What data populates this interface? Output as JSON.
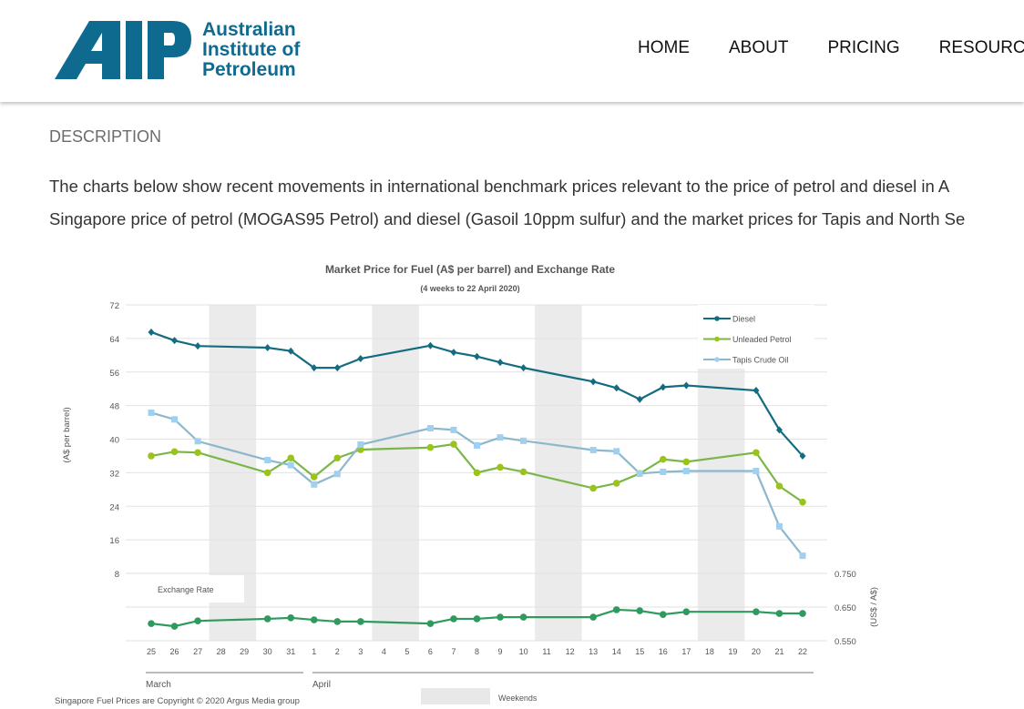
{
  "header": {
    "logo_mark": "AIP",
    "logo_lines": [
      "Australian",
      "Institute of",
      "Petroleum"
    ],
    "nav": [
      "HOME",
      "ABOUT",
      "PRICING",
      "RESOURCES"
    ]
  },
  "description": {
    "heading": "DESCRIPTION",
    "lines": [
      "The charts below show recent movements in international benchmark prices relevant to the price of petrol and diesel in A",
      "Singapore price of petrol (MOGAS95 Petrol) and diesel (Gasoil 10ppm sulfur) and the market prices for Tapis and North Se"
    ]
  },
  "chart_data": {
    "type": "line",
    "title": "Market Price for Fuel (A$ per barrel) and Exchange  Rate",
    "subtitle": "(4 weeks to 22 April 2020)",
    "ylabel": "(A$ per barrel)",
    "y2label": "(US$ / A$)",
    "ylim": [
      0,
      72
    ],
    "yticks": [
      8,
      16,
      24,
      32,
      40,
      48,
      56,
      64,
      72
    ],
    "y2lim": [
      0.55,
      0.75
    ],
    "y2ticks": [
      "0.550",
      "0.650",
      "0.750"
    ],
    "categories": [
      "25",
      "26",
      "27",
      "28",
      "29",
      "30",
      "31",
      "1",
      "2",
      "3",
      "4",
      "5",
      "6",
      "7",
      "8",
      "9",
      "10",
      "11",
      "12",
      "13",
      "14",
      "15",
      "16",
      "17",
      "18",
      "19",
      "20",
      "21",
      "22"
    ],
    "months": [
      "March",
      "April"
    ],
    "weekends": [
      [
        "28",
        "29"
      ],
      [
        "4",
        "5"
      ],
      [
        "11",
        "12"
      ],
      [
        "18",
        "19"
      ]
    ],
    "weekend_label": "Weekends",
    "exchange_label": "Exchange  Rate",
    "series": [
      {
        "name": "Diesel",
        "color": "#146c80",
        "marker": "diamond",
        "values": [
          65.5,
          63.5,
          62.2,
          null,
          null,
          61.8,
          61,
          57,
          57,
          59.2,
          null,
          null,
          62.3,
          60.7,
          59.7,
          58.3,
          57,
          null,
          null,
          53.7,
          52.2,
          49.5,
          52.4,
          52.8,
          null,
          null,
          51.6,
          42.2,
          36
        ]
      },
      {
        "name": "Unleaded Petrol",
        "color": "#7ab648",
        "marker": "circle",
        "values": [
          36,
          37,
          36.8,
          null,
          null,
          32,
          35.5,
          31,
          35.5,
          37.5,
          null,
          null,
          38,
          38.8,
          32,
          33.3,
          32.2,
          null,
          null,
          28.3,
          29.5,
          31.8,
          35.2,
          34.6,
          null,
          null,
          36.8,
          28.8,
          25
        ]
      },
      {
        "name": "Tapis Crude Oil",
        "color": "#8db8cc",
        "marker": "square",
        "values": [
          46.3,
          44.7,
          39.5,
          null,
          null,
          35,
          33.8,
          29.2,
          31.7,
          38.7,
          null,
          null,
          42.6,
          42.2,
          38.5,
          40.4,
          39.6,
          null,
          null,
          37.4,
          37.1,
          31.8,
          32.2,
          32.4,
          null,
          null,
          32.4,
          19.2,
          12.2
        ]
      },
      {
        "name": "Exchange Rate",
        "color": "#2e9a5e",
        "marker": "circle",
        "axis": "right",
        "values": [
          0.601,
          0.593,
          0.609,
          null,
          null,
          0.615,
          0.618,
          0.612,
          0.607,
          0.607,
          null,
          null,
          0.601,
          0.615,
          0.615,
          0.62,
          0.62,
          null,
          null,
          0.62,
          0.642,
          0.639,
          0.628,
          0.636,
          null,
          null,
          0.636,
          0.631,
          0.631
        ]
      }
    ],
    "footnote": "Singapore  Fuel Prices  are Copyright © 2020  Argus  Media group"
  }
}
